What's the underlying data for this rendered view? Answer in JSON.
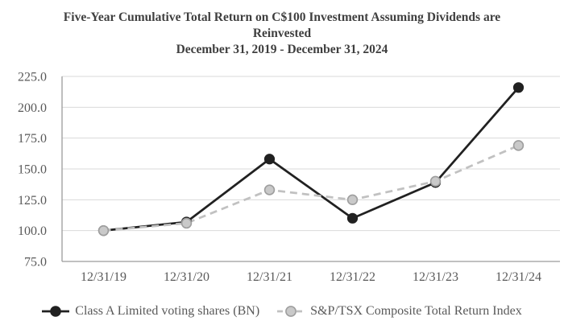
{
  "chart_data": {
    "type": "line",
    "title_lines": [
      "Five-Year Cumulative Total Return on C$100 Investment Assuming Dividends are",
      "Reinvested"
    ],
    "subtitle": "December 31, 2019 - December 31, 2024",
    "categories": [
      "12/31/19",
      "12/31/20",
      "12/31/21",
      "12/31/22",
      "12/31/23",
      "12/31/24"
    ],
    "series": [
      {
        "name": "Class A Limited voting shares (BN)",
        "values": [
          100.0,
          107.0,
          158.0,
          110.0,
          139.0,
          216.0
        ],
        "line_color": "#212121",
        "line_style": "solid",
        "marker_fill": "#212121",
        "marker_stroke": "#212121"
      },
      {
        "name": "S&P/TSX Composite Total Return Index",
        "values": [
          100.0,
          106.0,
          133.0,
          125.0,
          140.0,
          169.0
        ],
        "line_color": "#c1c1c1",
        "line_style": "dashed",
        "marker_fill": "#c9c9c9",
        "marker_stroke": "#9e9e9e"
      }
    ],
    "ylim": [
      75,
      225
    ],
    "ytick_step": 25,
    "ytick_decimals": 1,
    "grid": true,
    "legend_position": "bottom",
    "colors": {
      "background": "#ffffff",
      "grid_line": "#d9d9d9",
      "axis_line": "#9b9b9b",
      "tick_label": "#595959",
      "title": "#3f3f3f",
      "legend_label": "#595959"
    }
  }
}
